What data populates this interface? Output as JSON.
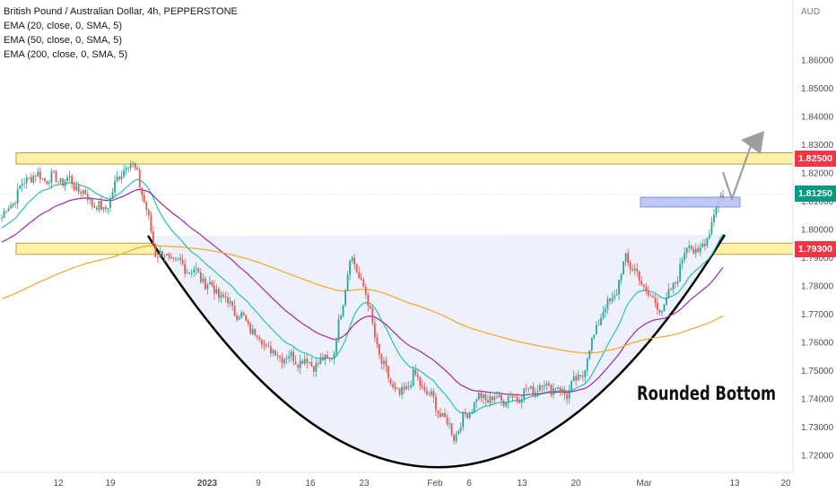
{
  "legend": {
    "symbol": "British Pound / Australian Dollar, 4h, PEPPERSTONE",
    "ema20": "EMA (20, close, 0, SMA, 5)",
    "ema50": "EMA (50, close, 0, SMA, 5)",
    "ema200": "EMA (200, close, 0, SMA, 5)"
  },
  "axis": {
    "currency": "AUD",
    "y_ticks": [
      "1.86000",
      "1.85000",
      "1.84000",
      "1.83000",
      "1.82000",
      "1.81000",
      "1.80000",
      "1.79000",
      "1.78000",
      "1.77000",
      "1.76000",
      "1.75000",
      "1.74000",
      "1.73000",
      "1.72000"
    ],
    "x_ticks": [
      "12",
      "19",
      "2023",
      "9",
      "16",
      "23",
      "Feb",
      "6",
      "13",
      "20",
      "Mar",
      "13",
      "20"
    ]
  },
  "price_tags": {
    "resistance": "1.82500",
    "last": "1.81250",
    "support": "1.79300"
  },
  "annotation": {
    "pattern_label": "Rounded Bottom"
  },
  "colors": {
    "up": "#26a69a",
    "down": "#ef5350",
    "ema20": "#22c3b5",
    "ema50": "#9c27b0",
    "ema200": "#f5a623",
    "zone_fill": "#fff2a8",
    "zone_border": "#9b8a2a",
    "tag_red": "#f23645",
    "tag_green": "#089981",
    "box_fill": "#b8c4f2",
    "arrow": "#9e9e9e"
  },
  "chart_data": {
    "type": "candlestick",
    "title": "British Pound / Australian Dollar, 4h, PEPPERSTONE",
    "ylabel": "AUD",
    "ylim": [
      1.716,
      1.868
    ],
    "x_tick_labels": [
      "12",
      "19",
      "2023",
      "9",
      "16",
      "23",
      "Feb",
      "6",
      "13",
      "20",
      "Mar",
      "13",
      "20"
    ],
    "price_anchors": [
      [
        0,
        1.804
      ],
      [
        12,
        1.819
      ],
      [
        30,
        1.817
      ],
      [
        45,
        1.806
      ],
      [
        55,
        1.824
      ],
      [
        60,
        1.82
      ],
      [
        68,
        1.792
      ],
      [
        85,
        1.785
      ],
      [
        100,
        1.774
      ],
      [
        120,
        1.756
      ],
      [
        140,
        1.752
      ],
      [
        147,
        1.756
      ],
      [
        154,
        1.79
      ],
      [
        160,
        1.78
      ],
      [
        168,
        1.752
      ],
      [
        176,
        1.74
      ],
      [
        182,
        1.748
      ],
      [
        190,
        1.74
      ],
      [
        200,
        1.727
      ],
      [
        210,
        1.74
      ],
      [
        225,
        1.74
      ],
      [
        240,
        1.745
      ],
      [
        250,
        1.742
      ],
      [
        257,
        1.749
      ],
      [
        264,
        1.768
      ],
      [
        272,
        1.778
      ],
      [
        276,
        1.79
      ],
      [
        280,
        1.785
      ],
      [
        288,
        1.774
      ],
      [
        293,
        1.772
      ],
      [
        299,
        1.784
      ],
      [
        304,
        1.796
      ],
      [
        308,
        1.79
      ],
      [
        312,
        1.798
      ],
      [
        318,
        1.812
      ]
    ],
    "horizontal_zones": [
      {
        "label": "1.82500",
        "from": 1.823,
        "to": 1.827
      },
      {
        "label": "1.79300",
        "from": 1.791,
        "to": 1.795
      }
    ],
    "last_price": 1.8125,
    "moving_averages": [
      "EMA 20",
      "EMA 50",
      "EMA 200"
    ],
    "annotation": "Rounded Bottom",
    "grid": false
  }
}
